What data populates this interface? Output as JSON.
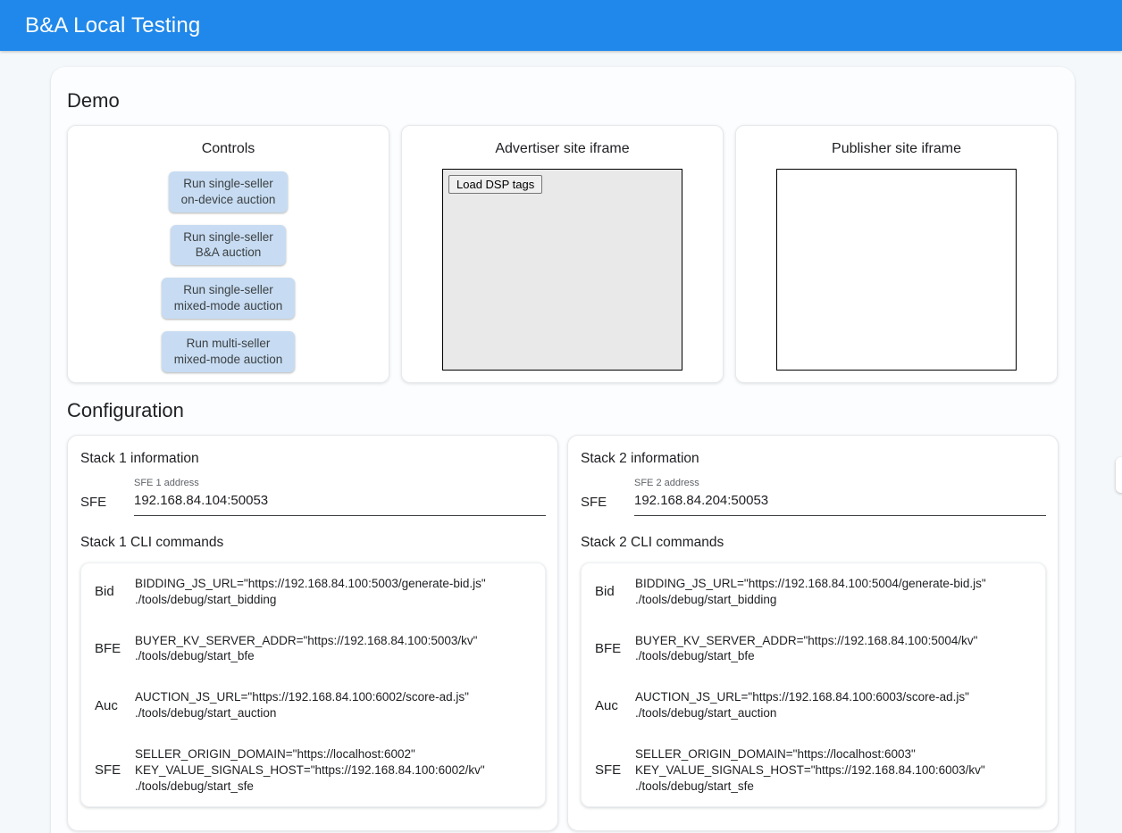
{
  "header": {
    "title": "B&A Local Testing",
    "accent_color": "#2088ea"
  },
  "demo": {
    "heading": "Demo",
    "controls": {
      "title": "Controls",
      "button_color": "#c7dcf2",
      "buttons": [
        {
          "label": "Run single-seller\non-device auction"
        },
        {
          "label": "Run single-seller\nB&A auction"
        },
        {
          "label": "Run single-seller\nmixed-mode auction"
        },
        {
          "label": "Run multi-seller\nmixed-mode auction"
        }
      ]
    },
    "advertiser": {
      "title": "Advertiser site iframe",
      "load_button_label": "Load DSP tags"
    },
    "publisher": {
      "title": "Publisher site iframe"
    }
  },
  "configuration": {
    "heading": "Configuration",
    "stacks": [
      {
        "info_title": "Stack 1 information",
        "sfe_label": "SFE",
        "address_label": "SFE 1 address",
        "address_value": "192.168.84.104:50053",
        "cli_title": "Stack 1 CLI commands",
        "commands": [
          {
            "label": "Bid",
            "text": "BIDDING_JS_URL=\"https://192.168.84.100:5003/generate-bid.js\"\n./tools/debug/start_bidding"
          },
          {
            "label": "BFE",
            "text": "BUYER_KV_SERVER_ADDR=\"https://192.168.84.100:5003/kv\"\n./tools/debug/start_bfe"
          },
          {
            "label": "Auc",
            "text": "AUCTION_JS_URL=\"https://192.168.84.100:6002/score-ad.js\"\n./tools/debug/start_auction"
          },
          {
            "label": "SFE",
            "text": "SELLER_ORIGIN_DOMAIN=\"https://localhost:6002\"\nKEY_VALUE_SIGNALS_HOST=\"https://192.168.84.100:6002/kv\"\n./tools/debug/start_sfe"
          }
        ]
      },
      {
        "info_title": "Stack 2 information",
        "sfe_label": "SFE",
        "address_label": "SFE 2 address",
        "address_value": "192.168.84.204:50053",
        "cli_title": "Stack 2 CLI commands",
        "commands": [
          {
            "label": "Bid",
            "text": "BIDDING_JS_URL=\"https://192.168.84.100:5004/generate-bid.js\"\n./tools/debug/start_bidding"
          },
          {
            "label": "BFE",
            "text": "BUYER_KV_SERVER_ADDR=\"https://192.168.84.100:5004/kv\"\n./tools/debug/start_bfe"
          },
          {
            "label": "Auc",
            "text": "AUCTION_JS_URL=\"https://192.168.84.100:6003/score-ad.js\"\n./tools/debug/start_auction"
          },
          {
            "label": "SFE",
            "text": "SELLER_ORIGIN_DOMAIN=\"https://localhost:6003\"\nKEY_VALUE_SIGNALS_HOST=\"https://192.168.84.100:6003/kv\"\n./tools/debug/start_sfe"
          }
        ]
      }
    ]
  }
}
